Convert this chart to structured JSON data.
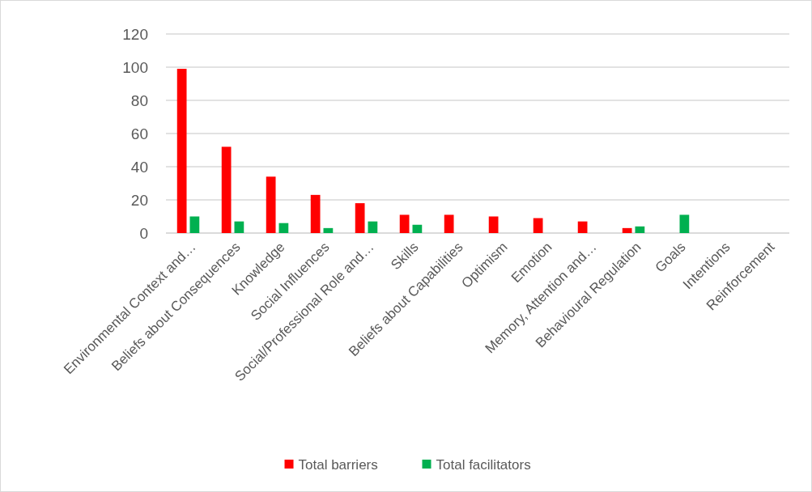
{
  "chart_data": {
    "type": "bar",
    "categories": [
      "Environmental Context and…",
      "Beliefs about Consequences",
      "Knowledge",
      "Social Influences",
      "Social/Professional Role and…",
      "Skills",
      "Beliefs about Capabilities",
      "Optimism",
      "Emotion",
      "Memory, Attention and…",
      "Behavioural Regulation",
      "Goals",
      "Intentions",
      "Reinforcement"
    ],
    "series": [
      {
        "name": "Total barriers",
        "color": "#ff0000",
        "values": [
          99,
          52,
          34,
          23,
          18,
          11,
          11,
          10,
          9,
          7,
          3,
          0,
          0,
          0
        ]
      },
      {
        "name": "Total facilitators",
        "color": "#00b050",
        "values": [
          10,
          7,
          6,
          3,
          7,
          5,
          0,
          0,
          0,
          0,
          4,
          11,
          0,
          0
        ]
      }
    ],
    "ylim": [
      0,
      120
    ],
    "yticks": [
      0,
      20,
      40,
      60,
      80,
      100,
      120
    ],
    "grid": "y",
    "legend": "bottom"
  }
}
